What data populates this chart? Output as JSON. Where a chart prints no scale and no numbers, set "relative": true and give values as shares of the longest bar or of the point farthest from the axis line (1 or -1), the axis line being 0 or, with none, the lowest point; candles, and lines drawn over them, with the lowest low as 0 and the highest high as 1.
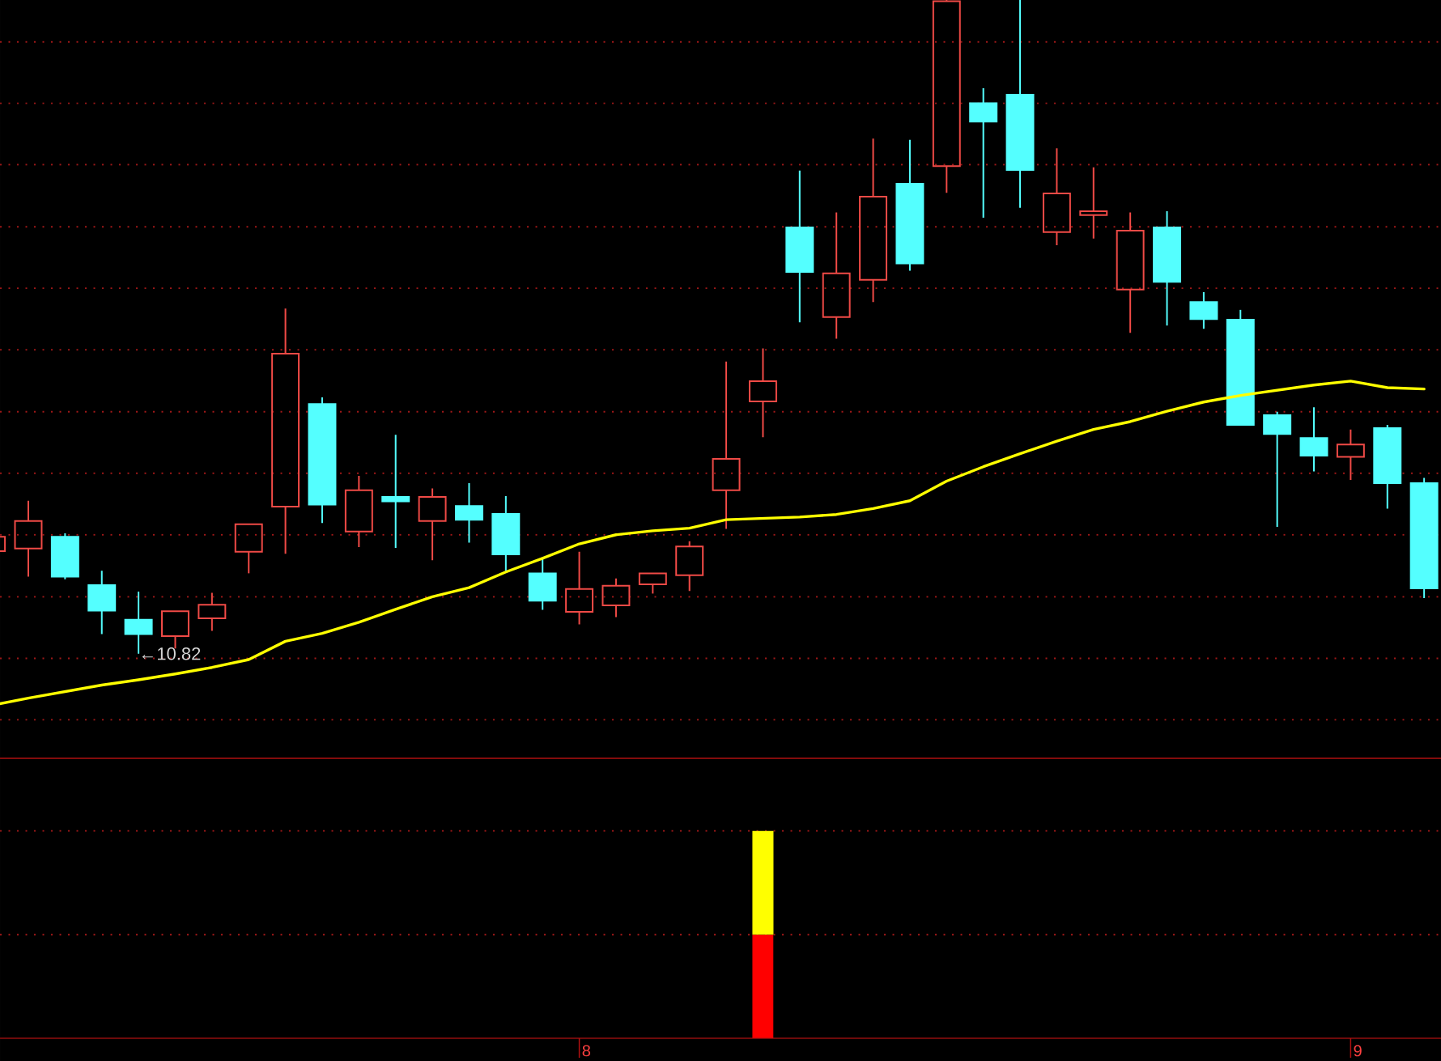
{
  "chart_data": [
    {
      "type": "candlestick",
      "relative": true,
      "tick_labels": false,
      "ref_lines": [
        {
          "axis": "y",
          "value": 0.936,
          "line_style": "dotted",
          "color": "#a01818"
        },
        {
          "axis": "y",
          "value": 0.842,
          "line_style": "dotted",
          "color": "#a01818"
        },
        {
          "axis": "y",
          "value": 0.748,
          "line_style": "dotted",
          "color": "#a01818"
        },
        {
          "axis": "y",
          "value": 0.653,
          "line_style": "dotted",
          "color": "#a01818"
        },
        {
          "axis": "y",
          "value": 0.559,
          "line_style": "dotted",
          "color": "#a01818"
        },
        {
          "axis": "y",
          "value": 0.465,
          "line_style": "dotted",
          "color": "#a01818"
        },
        {
          "axis": "y",
          "value": 0.37,
          "line_style": "dotted",
          "color": "#a01818"
        },
        {
          "axis": "y",
          "value": 0.276,
          "line_style": "dotted",
          "color": "#a01818"
        },
        {
          "axis": "y",
          "value": 0.182,
          "line_style": "dotted",
          "color": "#a01818"
        },
        {
          "axis": "y",
          "value": 0.087,
          "line_style": "dotted",
          "color": "#a01818"
        },
        {
          "axis": "y",
          "value": -0.007,
          "line_style": "dotted",
          "color": "#a01818"
        },
        {
          "axis": "y",
          "value": -0.101,
          "line_style": "dotted",
          "color": "#a01818"
        }
      ],
      "categories": [
        null,
        null,
        null,
        null,
        null,
        null,
        null,
        null,
        null,
        null,
        null,
        null,
        null,
        null,
        null,
        null,
        "8",
        null,
        null,
        null,
        null,
        null,
        null,
        null,
        null,
        null,
        null,
        null,
        null,
        null,
        null,
        null,
        null,
        null,
        null,
        null,
        null,
        "9",
        null,
        null
      ],
      "ohlc": [
        [
          0.157,
          0.179,
          0.157,
          0.179
        ],
        [
          0.161,
          0.234,
          0.118,
          0.203
        ],
        [
          0.179,
          0.184,
          0.114,
          0.118
        ],
        [
          0.105,
          0.127,
          0.03,
          0.066
        ],
        [
          0.052,
          0.095,
          0,
          0.03
        ],
        [
          0.027,
          0.065,
          0.008,
          0.065
        ],
        [
          0.054,
          0.093,
          0.035,
          0.075
        ],
        [
          0.156,
          0.198,
          0.123,
          0.198
        ],
        [
          0.225,
          0.528,
          0.153,
          0.459
        ],
        [
          0.382,
          0.392,
          0.2,
          0.228
        ],
        [
          0.187,
          0.272,
          0.163,
          0.25
        ],
        [
          0.24,
          0.335,
          0.162,
          0.233
        ],
        [
          0.203,
          0.253,
          0.143,
          0.24
        ],
        [
          0.226,
          0.261,
          0.17,
          0.205
        ],
        [
          0.214,
          0.241,
          0.127,
          0.152
        ],
        [
          0.123,
          0.146,
          0.067,
          0.081
        ],
        [
          0.064,
          0.156,
          0.045,
          0.099
        ],
        [
          0.074,
          0.115,
          0.056,
          0.104
        ],
        [
          0.106,
          0.123,
          0.092,
          0.123
        ],
        [
          0.12,
          0.172,
          0.096,
          0.164
        ],
        [
          0.25,
          0.447,
          0.191,
          0.298
        ],
        [
          0.386,
          0.467,
          0.331,
          0.417
        ],
        [
          0.652,
          0.739,
          0.507,
          0.584
        ],
        [
          0.515,
          0.675,
          0.482,
          0.582
        ],
        [
          0.572,
          0.788,
          0.538,
          0.699
        ],
        [
          0.719,
          0.786,
          0.586,
          0.597
        ],
        [
          0.746,
          1,
          0.705,
          0.998
        ],
        [
          0.842,
          0.865,
          0.667,
          0.814
        ],
        [
          0.855,
          1,
          0.682,
          0.74
        ],
        [
          0.645,
          0.773,
          0.625,
          0.704
        ],
        [
          0.671,
          0.744,
          0.635,
          0.677
        ],
        [
          0.557,
          0.675,
          0.491,
          0.647
        ],
        [
          0.652,
          0.677,
          0.502,
          0.569
        ],
        [
          0.538,
          0.553,
          0.497,
          0.512
        ],
        [
          0.511,
          0.526,
          0.35,
          0.35
        ],
        [
          0.365,
          0.37,
          0.194,
          0.336
        ],
        [
          0.33,
          0.377,
          0.279,
          0.303
        ],
        [
          0.301,
          0.343,
          0.266,
          0.32
        ],
        [
          0.345,
          0.35,
          0.222,
          0.261
        ],
        [
          0.261,
          0.269,
          0.085,
          0.1
        ]
      ],
      "colors": [
        "#f04a46",
        "#f04a46",
        "#54ffff",
        "#54ffff",
        "#54ffff",
        "#f04a46",
        "#f04a46",
        "#f04a46",
        "#f04a46",
        "#54ffff",
        "#f04a46",
        "#54ffff",
        "#f04a46",
        "#54ffff",
        "#54ffff",
        "#54ffff",
        "#f04a46",
        "#f04a46",
        "#f04a46",
        "#f04a46",
        "#f04a46",
        "#f04a46",
        "#54ffff",
        "#f04a46",
        "#f04a46",
        "#54ffff",
        "#f04a46",
        "#54ffff",
        "#54ffff",
        "#f04a46",
        "#f04a46",
        "#f04a46",
        "#54ffff",
        "#54ffff",
        "#54ffff",
        "#54ffff",
        "#54ffff",
        "#f04a46",
        "#54ffff",
        "#54ffff"
      ],
      "series": [
        {
          "type": "line",
          "color": "#ffff00",
          "values": [
            -0.079,
            -0.068,
            -0.058,
            -0.048,
            -0.04,
            -0.031,
            -0.021,
            -0.009,
            0.019,
            0.031,
            0.048,
            0.068,
            0.087,
            0.101,
            0.125,
            0.146,
            0.168,
            0.182,
            0.188,
            0.192,
            0.205,
            0.207,
            0.209,
            0.213,
            0.222,
            0.234,
            0.264,
            0.286,
            0.306,
            0.325,
            0.343,
            0.355,
            0.371,
            0.385,
            0.395,
            0.403,
            0.411,
            0.417,
            0.407,
            0.405
          ]
        }
      ],
      "annotations": [
        "←10.82"
      ]
    },
    {
      "type": "bar",
      "relative": true,
      "stacked": true,
      "ref_lines": [
        {
          "axis": "y",
          "value": 0.5,
          "line_style": "dotted",
          "color": "#a01818"
        },
        {
          "axis": "y",
          "value": 1,
          "line_style": "dotted",
          "color": "#a01818"
        }
      ],
      "categories": [
        null,
        null,
        null,
        null,
        null,
        null,
        null,
        null,
        null,
        null,
        null,
        null,
        null,
        null,
        null,
        null,
        "8",
        null,
        null,
        null,
        null,
        null,
        null,
        null,
        null,
        null,
        null,
        null,
        null,
        null,
        null,
        null,
        null,
        null,
        null,
        null,
        null,
        "9",
        null,
        null
      ],
      "series": [
        {
          "color": "#ff0000",
          "values": [
            null,
            null,
            null,
            null,
            null,
            null,
            null,
            null,
            null,
            null,
            null,
            null,
            null,
            null,
            null,
            null,
            null,
            null,
            null,
            null,
            null,
            0.5,
            null,
            null,
            null,
            null,
            null,
            null,
            null,
            null,
            null,
            null,
            null,
            null,
            null,
            null,
            null,
            null,
            null,
            null
          ]
        },
        {
          "color": "#ffff00",
          "values": [
            null,
            null,
            null,
            null,
            null,
            null,
            null,
            null,
            null,
            null,
            null,
            null,
            null,
            null,
            null,
            null,
            null,
            null,
            null,
            null,
            null,
            0.5,
            null,
            null,
            null,
            null,
            null,
            null,
            null,
            null,
            null,
            null,
            null,
            null,
            null,
            null,
            null,
            null,
            null,
            null
          ]
        }
      ]
    }
  ]
}
